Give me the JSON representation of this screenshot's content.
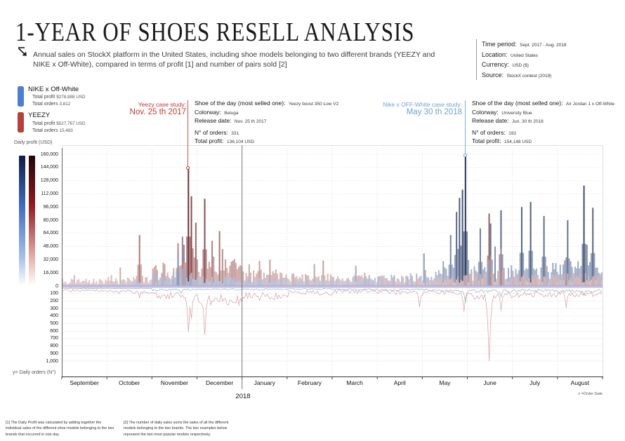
{
  "title": "1-YEAR OF SHOES RESELL ANALYSIS",
  "subtitle": "Annual sales on StockX platform in the United States, including shoe models belonging to two different brands (YEEZY and NIKE x Off-White), compared in terms of profit [1] and number of pairs sold [2]",
  "meta": {
    "rows": [
      {
        "label": "Time period:",
        "value": "Sept. 2017 - Aug. 2018"
      },
      {
        "label": "Location:",
        "value": "United States"
      },
      {
        "label": "Currency:",
        "value": "USD ($)"
      },
      {
        "label": "Source:",
        "value": "StockX contest (2019)"
      }
    ]
  },
  "legend": {
    "nike": {
      "name": "NIKE x Off-White",
      "profit_label": "Total profit",
      "profit": "$278,888 USD",
      "orders_label": "Total orders",
      "orders": "3,812",
      "color": "#4e7ed0"
    },
    "yeezy": {
      "name": "YEEZY",
      "profit_label": "Total profit",
      "profit": "$527,767 USD",
      "orders_label": "Total orders",
      "orders": "15,483",
      "color": "#b5413c"
    }
  },
  "annotations": {
    "yeezy": {
      "callout_line1": "Yeezy case study:",
      "callout_line2": "Nov. 25 th 2017",
      "shoe_label": "Shoe of the day (most selled one):",
      "shoe": "Yeezy boost 350 Low V2",
      "colorway_label": "Colorway:",
      "colorway": "Beluga",
      "release_label": "Release date:",
      "release": "Nov. 25 th 2017",
      "orders_label": "N° of orders:",
      "orders": "331",
      "profit_label": "Total profit:",
      "profit": "136,104 USD",
      "color": "#c0392b"
    },
    "nike": {
      "callout_line1": "Nike x OFF-White case study:",
      "callout_line2": "May 30 th 2018",
      "shoe_label": "Shoe of the day (most selled one):",
      "shoe": "Air Jordan 1 x Off-White",
      "colorway_label": "Colorway:",
      "colorway": "University Blue",
      "release_label": "Release date:",
      "release": "Jun. 30 th 2018",
      "orders_label": "N° of orders:",
      "orders": "192",
      "profit_label": "Total profit:",
      "profit": "154,148 USD",
      "color": "#6fa0d8"
    }
  },
  "axes": {
    "profit_axis_label": "Daily profit (USD)",
    "orders_axis_label": "y= Daily orders (N°)",
    "x_axis_note": "x =Order Date",
    "year_label": "2018",
    "profit_ticks": [
      "160,000",
      "144,000",
      "128,000",
      "112,000",
      "96,000",
      "80,000",
      "64,000",
      "48,000",
      "32,000",
      "16,000",
      "0"
    ],
    "orders_ticks": [
      "100",
      "200",
      "300",
      "400",
      "500",
      "600",
      "700",
      "800",
      "900",
      "1,000"
    ]
  },
  "footnotes": {
    "f1": "[1] The Daily Profit was calculated by adding together the individual sales of the different shoe models belonging to the two brands that occurred in one day.",
    "f2": "[2] The number of daily sales sums the sales of all the different models belonging to the two brands. The two examples below represent the two most popular models respectively."
  },
  "chart_data": {
    "type": "bar",
    "description": "Dual-panel daily time series, Sept 2017 - Aug 2018. Upper panel: daily profit (USD) bars per brand, color darkens with value. Lower inverted panel: daily number of orders as thin lines.",
    "months": [
      "September",
      "October",
      "November",
      "December",
      "January",
      "February",
      "March",
      "April",
      "May",
      "June",
      "July",
      "August"
    ],
    "days": 365,
    "profit_ylim": [
      0,
      160000
    ],
    "orders_ylim": [
      0,
      1000
    ],
    "grid": true,
    "baseline_band_color": "#b3aed6",
    "series": [
      {
        "name": "NIKE x Off-White",
        "bar_color_light": "#ccdaf3",
        "bar_color_dark": "#101f45",
        "orders_line_color": "#8fb3c4",
        "profit_monthly_baseline": [
          2500,
          3500,
          11000,
          8000,
          7000,
          6500,
          9000,
          11000,
          16000,
          17000,
          19000,
          21000
        ],
        "profit_spikes": [
          {
            "day": 78,
            "value": 42000
          },
          {
            "day": 82,
            "value": 50000
          },
          {
            "day": 262,
            "value": 62000
          },
          {
            "day": 266,
            "value": 90000
          },
          {
            "day": 268,
            "value": 107000
          },
          {
            "day": 270,
            "value": 117000
          },
          {
            "day": 272,
            "value": 158000
          },
          {
            "day": 282,
            "value": 70000
          },
          {
            "day": 289,
            "value": 76000
          },
          {
            "day": 296,
            "value": 92000
          },
          {
            "day": 310,
            "value": 96000
          },
          {
            "day": 316,
            "value": 102000
          },
          {
            "day": 325,
            "value": 85000
          },
          {
            "day": 341,
            "value": 80000
          },
          {
            "day": 352,
            "value": 122000
          },
          {
            "day": 358,
            "value": 95000
          }
        ],
        "orders_monthly_baseline": [
          8,
          10,
          28,
          22,
          22,
          18,
          22,
          28,
          38,
          45,
          40,
          45
        ],
        "orders_spikes": [
          {
            "day": 80,
            "value": 70
          },
          {
            "day": 272,
            "value": 190
          },
          {
            "day": 296,
            "value": 120
          },
          {
            "day": 352,
            "value": 100
          }
        ]
      },
      {
        "name": "YEEZY",
        "bar_color_light": "#f2d7d3",
        "bar_color_dark": "#570d12",
        "orders_line_color": "#dd9aa2",
        "profit_monthly_baseline": [
          6000,
          8000,
          20000,
          24000,
          14000,
          10000,
          9000,
          9000,
          10000,
          12000,
          10000,
          11000
        ],
        "profit_spikes": [
          {
            "day": 52,
            "value": 62000
          },
          {
            "day": 78,
            "value": 52000
          },
          {
            "day": 81,
            "value": 60000
          },
          {
            "day": 85,
            "value": 143000
          },
          {
            "day": 87,
            "value": 109000
          },
          {
            "day": 90,
            "value": 77000
          },
          {
            "day": 96,
            "value": 106000
          },
          {
            "day": 101,
            "value": 55000
          },
          {
            "day": 108,
            "value": 45000
          },
          {
            "day": 140,
            "value": 32000
          },
          {
            "day": 176,
            "value": 31000
          },
          {
            "day": 288,
            "value": 88000
          },
          {
            "day": 296,
            "value": 45000
          },
          {
            "day": 340,
            "value": 35000
          }
        ],
        "orders_monthly_baseline": [
          40,
          55,
          110,
          170,
          120,
          70,
          55,
          65,
          65,
          110,
          90,
          85
        ],
        "orders_spikes": [
          {
            "day": 52,
            "value": 130
          },
          {
            "day": 85,
            "value": 590
          },
          {
            "day": 87,
            "value": 400
          },
          {
            "day": 96,
            "value": 630
          },
          {
            "day": 241,
            "value": 250
          },
          {
            "day": 271,
            "value": 310
          },
          {
            "day": 288,
            "value": 980
          },
          {
            "day": 296,
            "value": 300
          },
          {
            "day": 340,
            "value": 260
          }
        ]
      }
    ],
    "highlight_markers": [
      {
        "series": "YEEZY",
        "day": 85,
        "value": 143000
      },
      {
        "series": "NIKE x Off-White",
        "day": 272,
        "value": 158000
      }
    ]
  }
}
